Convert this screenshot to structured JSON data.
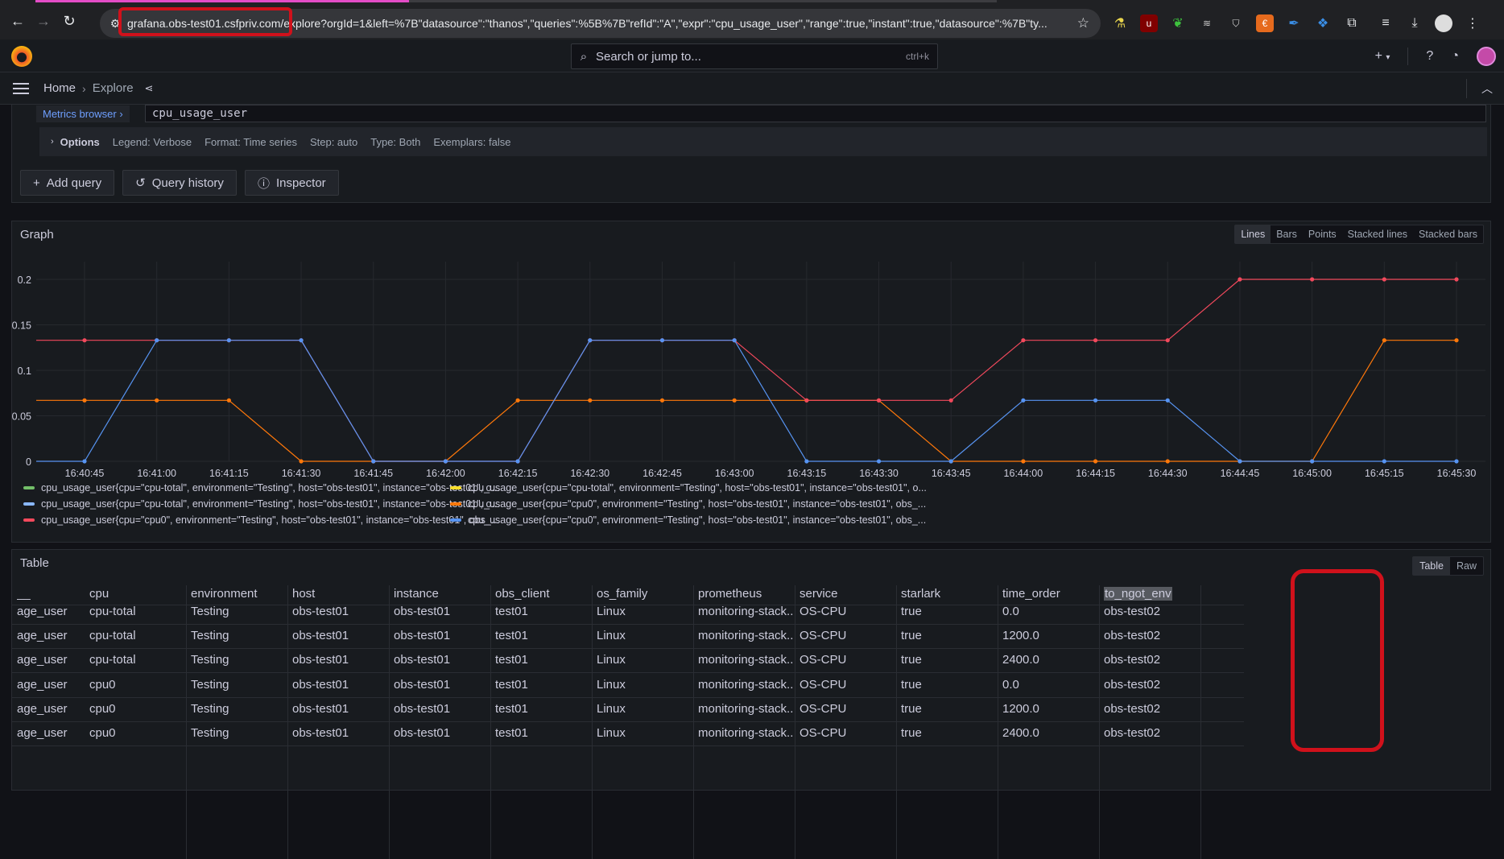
{
  "browser": {
    "url": "grafana.obs-test01.csfpriv.com/explore?orgId=1&left=%7B\"datasource\":\"thanos\",\"queries\":%5B%7B\"refId\":\"A\",\"expr\":\"cpu_usage_user\",\"range\":true,\"instant\":true,\"datasource\":%7B\"ty..."
  },
  "topbar": {
    "search_placeholder": "Search or jump to...",
    "search_shortcut": "ctrl+k",
    "plus_label": "+"
  },
  "breadcrumb": {
    "home": "Home",
    "separator": "›",
    "current": "Explore"
  },
  "query": {
    "metrics_browser": "Metrics browser ›",
    "expr": "cpu_usage_user",
    "options_title": "Options",
    "options": [
      "Legend: Verbose",
      "Format: Time series",
      "Step: auto",
      "Type: Both",
      "Exemplars: false"
    ],
    "buttons": {
      "add_query": "Add query",
      "query_history": "Query history",
      "inspector": "Inspector"
    }
  },
  "graph": {
    "title": "Graph",
    "modes": [
      "Lines",
      "Bars",
      "Points",
      "Stacked lines",
      "Stacked bars"
    ],
    "active_mode": "Lines"
  },
  "chart_data": {
    "type": "line",
    "title": "Graph",
    "x": [
      "16:40:45",
      "16:41:00",
      "16:41:15",
      "16:41:30",
      "16:41:45",
      "16:42:00",
      "16:42:15",
      "16:42:30",
      "16:42:45",
      "16:43:00",
      "16:43:15",
      "16:43:30",
      "16:43:45",
      "16:44:00",
      "16:44:15",
      "16:44:30",
      "16:44:45",
      "16:45:00",
      "16:45:15",
      "16:45:30"
    ],
    "ylim": [
      0,
      0.2
    ],
    "yticks": [
      "0",
      "0.05",
      "0.1",
      "0.15",
      "0.2"
    ],
    "grid": true,
    "legend_placement": "bottom",
    "series": [
      {
        "name": "cpu_usage_user{cpu=\"cpu-total\", environment=\"Testing\", host=\"obs-test01\", instance=\"obs-test01\", o...",
        "color": "#73bf69",
        "values": [
          null,
          null,
          null,
          null,
          null,
          null,
          null,
          null,
          null,
          null,
          null,
          null,
          null,
          null,
          null,
          null,
          null,
          null,
          null,
          null
        ]
      },
      {
        "name": "cpu_usage_user{cpu=\"cpu-total\", environment=\"Testing\", host=\"obs-test01\", instance=\"obs-test01\", o...",
        "color": "#fade2a",
        "values": [
          null,
          null,
          null,
          null,
          null,
          null,
          null,
          null,
          null,
          null,
          null,
          null,
          null,
          null,
          null,
          null,
          null,
          null,
          null,
          null
        ]
      },
      {
        "name": "cpu_usage_user{cpu=\"cpu-total\", environment=\"Testing\", host=\"obs-test01\", instance=\"obs-test01\", o...",
        "color": "#8ab8ff",
        "values": [
          null,
          null,
          null,
          null,
          null,
          null,
          null,
          null,
          null,
          null,
          null,
          null,
          null,
          null,
          null,
          null,
          null,
          null,
          null,
          null
        ]
      },
      {
        "name": "cpu_usage_user{cpu=\"cpu0\", environment=\"Testing\", host=\"obs-test01\", instance=\"obs-test01\", obs_...",
        "color": "#ff780a",
        "values": [
          0.067,
          0.067,
          0.067,
          0,
          0,
          0,
          0.067,
          0.067,
          0.067,
          0.067,
          0.067,
          0.067,
          0,
          0,
          0,
          0,
          0,
          0,
          0.133,
          0.133
        ]
      },
      {
        "name": "cpu_usage_user{cpu=\"cpu0\", environment=\"Testing\", host=\"obs-test01\", instance=\"obs-test01\", obs_...",
        "color": "#f2495c",
        "values": [
          0.133,
          0.133,
          0.133,
          0.133,
          0,
          0,
          0,
          0.133,
          0.133,
          0.133,
          0.067,
          0.067,
          0.067,
          0.133,
          0.133,
          0.133,
          0.2,
          0.2,
          0.2,
          0.2
        ]
      },
      {
        "name": "cpu_usage_user{cpu=\"cpu0\", environment=\"Testing\", host=\"obs-test01\", instance=\"obs-test01\", obs_...",
        "color": "#5794f2",
        "values": [
          0,
          0.133,
          0.133,
          0.133,
          0,
          0,
          0,
          0.133,
          0.133,
          0.133,
          0,
          0,
          0,
          0.067,
          0.067,
          0.067,
          0,
          0,
          0,
          0
        ]
      }
    ]
  },
  "table": {
    "title": "Table",
    "modes": [
      "Table",
      "Raw"
    ],
    "active_mode": "Table",
    "columns": [
      "__",
      "cpu",
      "environment",
      "host",
      "instance",
      "obs_client",
      "os_family",
      "prometheus",
      "service",
      "starlark",
      "time_order",
      "to_ngot_env"
    ],
    "rows": [
      [
        "age_user",
        "cpu-total",
        "Testing",
        "obs-test01",
        "obs-test01",
        "test01",
        "Linux",
        "monitoring-stack...",
        "OS-CPU",
        "true",
        "0.0",
        "obs-test02"
      ],
      [
        "age_user",
        "cpu-total",
        "Testing",
        "obs-test01",
        "obs-test01",
        "test01",
        "Linux",
        "monitoring-stack...",
        "OS-CPU",
        "true",
        "1200.0",
        "obs-test02"
      ],
      [
        "age_user",
        "cpu-total",
        "Testing",
        "obs-test01",
        "obs-test01",
        "test01",
        "Linux",
        "monitoring-stack...",
        "OS-CPU",
        "true",
        "2400.0",
        "obs-test02"
      ],
      [
        "age_user",
        "cpu0",
        "Testing",
        "obs-test01",
        "obs-test01",
        "test01",
        "Linux",
        "monitoring-stack...",
        "OS-CPU",
        "true",
        "0.0",
        "obs-test02"
      ],
      [
        "age_user",
        "cpu0",
        "Testing",
        "obs-test01",
        "obs-test01",
        "test01",
        "Linux",
        "monitoring-stack...",
        "OS-CPU",
        "true",
        "1200.0",
        "obs-test02"
      ],
      [
        "age_user",
        "cpu0",
        "Testing",
        "obs-test01",
        "obs-test01",
        "test01",
        "Linux",
        "monitoring-stack...",
        "OS-CPU",
        "true",
        "2400.0",
        "obs-test02"
      ]
    ]
  }
}
